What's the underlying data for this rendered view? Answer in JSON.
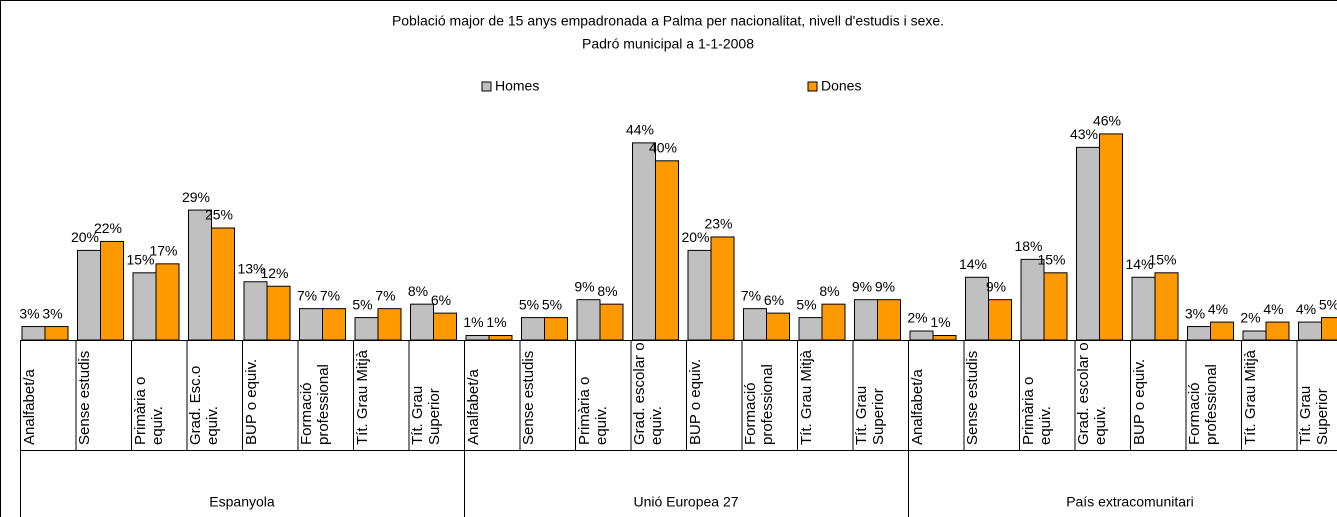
{
  "chart_data": {
    "type": "bar",
    "title": "Població major de 15 anys empadronada a Palma per nacionalitat, nivell d'estudis i sexe.",
    "subtitle": "Padró municipal a 1-1-2008",
    "groups": [
      "Espanyola",
      "Unió Europea 27",
      "País extracomunitari"
    ],
    "categories": [
      "Analfabet/a",
      "Sense estudis",
      "Primària o equiv.",
      "Grad. Esc.o equiv.",
      "BUP o equiv.",
      "Formació professional",
      "Tít. Grau Mitjà",
      "Tít. Grau Superior",
      "Analfabet/a",
      "Sense estudis",
      "Primària o equiv.",
      "Grad. escolar o equiv.",
      "BUP o equiv.",
      "Formació professional",
      "Tít. Grau Mitjà",
      "Tít. Grau Superior",
      "Analfabet/a",
      "Sense estudis",
      "Primària o equiv.",
      "Grad. escolar o equiv.",
      "BUP o equiv.",
      "Formació professional",
      "Tít. Grau Mitjà",
      "Tít. Grau Superior"
    ],
    "series": [
      {
        "name": "Homes",
        "color": "#c0c0c0",
        "values": [
          3,
          20,
          15,
          29,
          13,
          7,
          5,
          8,
          1,
          5,
          9,
          44,
          20,
          7,
          5,
          9,
          2,
          14,
          18,
          43,
          14,
          3,
          2,
          4
        ],
        "value_labels": [
          "3%",
          "20%",
          "15%",
          "29%",
          "13%",
          "7%",
          "5%",
          "8%",
          "1%",
          "5%",
          "9%",
          "44%",
          "20%",
          "7%",
          "5%",
          "9%",
          "2%",
          "14%",
          "18%",
          "43%",
          "14%",
          "3%",
          "2%",
          "4%"
        ]
      },
      {
        "name": "Dones",
        "color": "#ff9900",
        "values": [
          3,
          22,
          17,
          25,
          12,
          7,
          7,
          6,
          1,
          5,
          8,
          40,
          23,
          6,
          8,
          9,
          1,
          9,
          15,
          46,
          15,
          4,
          4,
          5
        ],
        "value_labels": [
          "3%",
          "22%",
          "17%",
          "25%",
          "12%",
          "7%",
          "7%",
          "6%",
          "1%",
          "5%",
          "8%",
          "40%",
          "23%",
          "6%",
          "8%",
          "9%",
          "1%",
          "9%",
          "15%",
          "46%",
          "15%",
          "4%",
          "4%",
          "5%"
        ]
      }
    ],
    "legend": "top"
  }
}
